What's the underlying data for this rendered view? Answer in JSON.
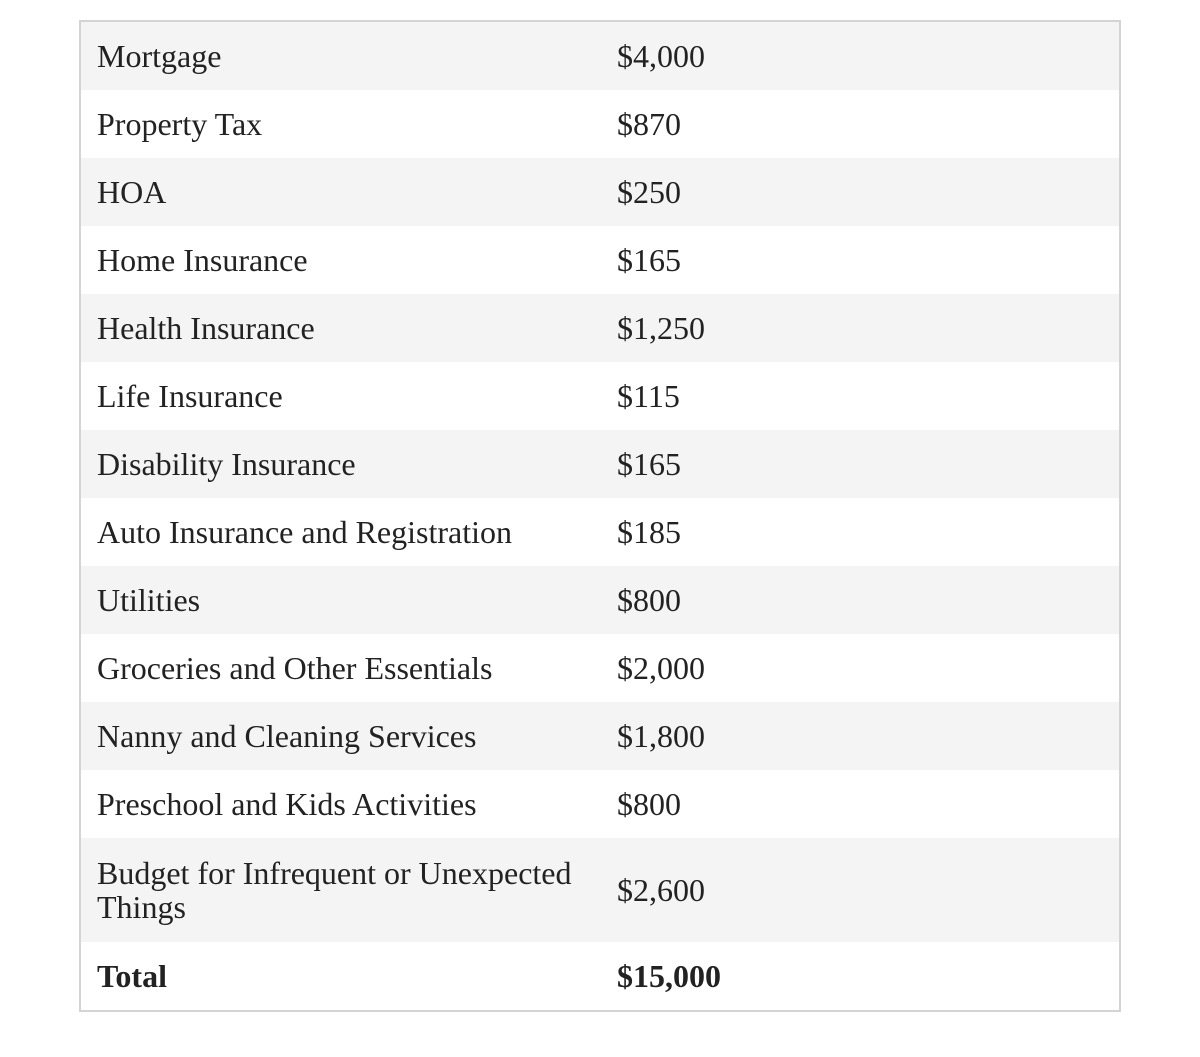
{
  "table": {
    "rows": [
      [
        "Mortgage",
        "$4,000"
      ],
      [
        "Property Tax",
        "$870"
      ],
      [
        "HOA",
        "$250"
      ],
      [
        "Home Insurance",
        "$165"
      ],
      [
        "Health Insurance",
        "$1,250"
      ],
      [
        "Life Insurance",
        "$115"
      ],
      [
        "Disability Insurance",
        "$165"
      ],
      [
        "Auto Insurance and Registration",
        "$185"
      ],
      [
        "Utilities",
        "$800"
      ],
      [
        "Groceries and Other Essentials",
        "$2,000"
      ],
      [
        "Nanny and Cleaning Services",
        "$1,800"
      ],
      [
        "Preschool and Kids Activities",
        "$800"
      ],
      [
        "Budget for Infrequent or Unexpected Things",
        "$2,600"
      ]
    ],
    "total": [
      "Total",
      "$15,000"
    ]
  }
}
